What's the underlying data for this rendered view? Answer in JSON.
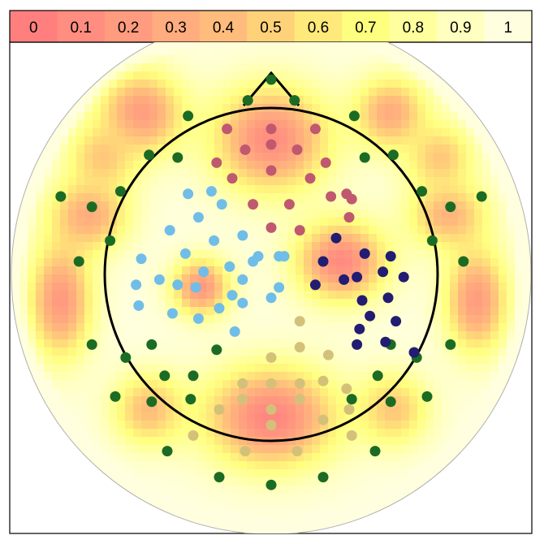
{
  "chart_data": {
    "type": "heatmap",
    "title": "",
    "xlabel": "",
    "ylabel": "",
    "grid": false,
    "legend": "top",
    "colorbar": {
      "ticks": [
        "0",
        "0.1",
        "0.2",
        "0.3",
        "0.4",
        "0.5",
        "0.6",
        "0.7",
        "0.8",
        "0.9",
        "1"
      ],
      "range": [
        0,
        1
      ],
      "colors": [
        "#ff7f7f",
        "#ff8d80",
        "#ff9c7f",
        "#ffac7e",
        "#ffbc7c",
        "#ffd27a",
        "#ffe97b",
        "#ffff7f",
        "#ffff9e",
        "#ffffbf",
        "#ffffdf"
      ]
    },
    "head": {
      "radius_scale": 1.0,
      "head_circle_radius": 0.64,
      "nose": true
    },
    "colors": {
      "green": "#1b6b25",
      "maroon": "#c05870",
      "light_blue": "#70bde8",
      "navy": "#221c72",
      "khaki": "#d3c17a"
    },
    "electrodes": {
      "green": [
        [
          0.0,
          0.75
        ],
        [
          -0.09,
          0.67
        ],
        [
          0.09,
          0.67
        ],
        [
          -0.32,
          0.61
        ],
        [
          0.32,
          0.61
        ],
        [
          -0.47,
          0.46
        ],
        [
          0.47,
          0.46
        ],
        [
          -0.36,
          0.45
        ],
        [
          0.36,
          0.45
        ],
        [
          -0.58,
          0.32
        ],
        [
          0.58,
          0.32
        ],
        [
          -0.81,
          0.3
        ],
        [
          -0.69,
          0.26
        ],
        [
          0.69,
          0.26
        ],
        [
          0.81,
          0.3
        ],
        [
          -0.62,
          0.13
        ],
        [
          0.62,
          0.13
        ],
        [
          -0.74,
          0.05
        ],
        [
          0.74,
          0.05
        ],
        [
          -0.69,
          -0.27
        ],
        [
          0.69,
          -0.27
        ],
        [
          -0.56,
          -0.32
        ],
        [
          0.56,
          -0.32
        ],
        [
          -0.46,
          -0.27
        ],
        [
          0.46,
          -0.27
        ],
        [
          -0.41,
          -0.39
        ],
        [
          0.41,
          -0.39
        ],
        [
          -0.21,
          -0.29
        ],
        [
          -0.3,
          -0.39
        ],
        [
          -0.6,
          -0.47
        ],
        [
          0.6,
          -0.47
        ],
        [
          -0.46,
          -0.49
        ],
        [
          0.46,
          -0.49
        ],
        [
          -0.31,
          -0.48
        ],
        [
          0.31,
          -0.48
        ],
        [
          -0.4,
          -0.68
        ],
        [
          0.4,
          -0.68
        ],
        [
          -0.2,
          -0.78
        ],
        [
          0.2,
          -0.78
        ],
        [
          0.0,
          -0.81
        ]
      ],
      "maroon": [
        [
          -0.17,
          0.56
        ],
        [
          0.17,
          0.56
        ],
        [
          0.0,
          0.56
        ],
        [
          -0.1,
          0.48
        ],
        [
          0.0,
          0.5
        ],
        [
          0.1,
          0.48
        ],
        [
          -0.21,
          0.43
        ],
        [
          0.21,
          0.43
        ],
        [
          -0.15,
          0.37
        ],
        [
          0.0,
          0.4
        ],
        [
          0.15,
          0.37
        ],
        [
          -0.07,
          0.27
        ],
        [
          0.07,
          0.27
        ],
        [
          0.23,
          0.3
        ],
        [
          0.31,
          0.29
        ],
        [
          0.3,
          0.22
        ],
        [
          0.29,
          0.31
        ],
        [
          0.0,
          0.18
        ],
        [
          0.11,
          0.17
        ]
      ],
      "light_blue": [
        [
          -0.32,
          0.31
        ],
        [
          -0.23,
          0.32
        ],
        [
          -0.19,
          0.27
        ],
        [
          -0.28,
          0.22
        ],
        [
          -0.39,
          0.17
        ],
        [
          -0.22,
          0.13
        ],
        [
          -0.11,
          0.15
        ],
        [
          -0.5,
          0.06
        ],
        [
          -0.33,
          0.08
        ],
        [
          -0.16,
          0.03
        ],
        [
          -0.05,
          0.07
        ],
        [
          -0.52,
          -0.04
        ],
        [
          -0.36,
          -0.04
        ],
        [
          -0.26,
          0.01
        ],
        [
          -0.07,
          0.05
        ],
        [
          -0.43,
          -0.02
        ],
        [
          -0.29,
          -0.05
        ],
        [
          -0.11,
          -0.02
        ],
        [
          0.03,
          0.07
        ],
        [
          0.05,
          0.07
        ],
        [
          -0.15,
          -0.08
        ],
        [
          0.0,
          -0.09
        ],
        [
          -0.2,
          -0.13
        ],
        [
          0.03,
          -0.05
        ],
        [
          -0.51,
          -0.12
        ],
        [
          -0.38,
          -0.15
        ],
        [
          -0.28,
          -0.17
        ],
        [
          -0.11,
          -0.11
        ],
        [
          -0.14,
          -0.22
        ]
      ],
      "navy": [
        [
          0.25,
          0.14
        ],
        [
          0.36,
          0.08
        ],
        [
          0.46,
          0.07
        ],
        [
          0.2,
          0.05
        ],
        [
          0.33,
          -0.01
        ],
        [
          0.43,
          0.01
        ],
        [
          0.51,
          -0.01
        ],
        [
          0.17,
          -0.04
        ],
        [
          0.28,
          -0.02
        ],
        [
          0.35,
          -0.1
        ],
        [
          0.45,
          -0.09
        ],
        [
          0.38,
          -0.16
        ],
        [
          0.48,
          -0.18
        ],
        [
          0.34,
          -0.21
        ],
        [
          0.44,
          -0.26
        ],
        [
          0.55,
          -0.3
        ],
        [
          0.33,
          -0.27
        ]
      ],
      "khaki": [
        [
          0.11,
          -0.18
        ],
        [
          0.11,
          -0.28
        ],
        [
          0.22,
          -0.31
        ],
        [
          0.0,
          -0.32
        ],
        [
          0.0,
          -0.42
        ],
        [
          -0.11,
          -0.42
        ],
        [
          0.11,
          -0.42
        ],
        [
          0.2,
          -0.41
        ],
        [
          0.29,
          -0.44
        ],
        [
          0.3,
          -0.52
        ],
        [
          -0.11,
          -0.48
        ],
        [
          0.11,
          -0.48
        ],
        [
          0.0,
          -0.52
        ],
        [
          -0.2,
          -0.52
        ],
        [
          0.2,
          -0.56
        ],
        [
          0.0,
          -0.58
        ],
        [
          -0.3,
          -0.62
        ],
        [
          0.31,
          -0.62
        ],
        [
          -0.1,
          -0.68
        ],
        [
          0.1,
          -0.68
        ]
      ]
    },
    "heatmap_blobs": [
      [
        0.0,
        0.52,
        0.1,
        0.22,
        0.2
      ],
      [
        -0.5,
        0.62,
        0.2,
        0.16,
        0.16
      ],
      [
        0.46,
        0.62,
        0.3,
        0.14,
        0.14
      ],
      [
        -0.7,
        0.23,
        0.3,
        0.15,
        0.14
      ],
      [
        0.68,
        0.23,
        0.35,
        0.15,
        0.13
      ],
      [
        -0.81,
        -0.1,
        0.18,
        0.12,
        0.22
      ],
      [
        0.79,
        -0.1,
        0.2,
        0.12,
        0.2
      ],
      [
        -0.27,
        -0.05,
        0.18,
        0.11,
        0.11
      ],
      [
        0.27,
        0.05,
        0.08,
        0.17,
        0.15
      ],
      [
        0.0,
        -0.55,
        0.05,
        0.25,
        0.19
      ],
      [
        -0.47,
        -0.52,
        0.4,
        0.14,
        0.14
      ],
      [
        0.47,
        -0.52,
        0.45,
        0.14,
        0.14
      ],
      [
        -0.65,
        0.45,
        0.45,
        0.13,
        0.13
      ],
      [
        0.65,
        0.45,
        0.45,
        0.13,
        0.13
      ]
    ]
  }
}
